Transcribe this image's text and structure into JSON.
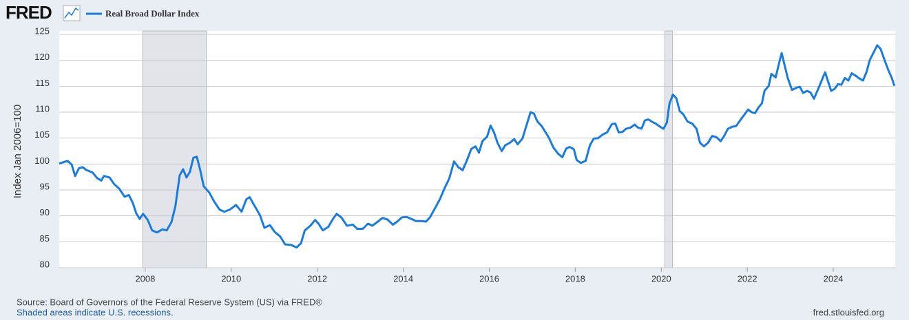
{
  "header": {
    "logo": "FRED"
  },
  "chart_data": {
    "type": "line",
    "y_label": "Index Jan 2006=100",
    "xlim": [
      2006,
      2025.44
    ],
    "xticks": [
      2008,
      2010,
      2012,
      2014,
      2016,
      2018,
      2020,
      2022,
      2024
    ],
    "ylim": [
      80,
      125
    ],
    "yticks": [
      80,
      85,
      90,
      95,
      100,
      105,
      110,
      115,
      120,
      125
    ],
    "grid": true,
    "recessions": [
      [
        2007.94,
        2009.42
      ],
      [
        2020.08,
        2020.26
      ]
    ],
    "recession_color": "#e1e5ea",
    "x": [
      2006.0,
      2006.19,
      2006.29,
      2006.37,
      2006.46,
      2006.54,
      2006.64,
      2006.77,
      2006.88,
      2006.98,
      2007.04,
      2007.17,
      2007.28,
      2007.39,
      2007.52,
      2007.62,
      2007.71,
      2007.79,
      2007.87,
      2007.95,
      2008.06,
      2008.16,
      2008.27,
      2008.4,
      2008.5,
      2008.61,
      2008.7,
      2008.8,
      2008.88,
      2008.96,
      2009.04,
      2009.12,
      2009.2,
      2009.28,
      2009.36,
      2009.49,
      2009.6,
      2009.73,
      2009.84,
      2009.97,
      2010.11,
      2010.24,
      2010.35,
      2010.43,
      2010.53,
      2010.67,
      2010.77,
      2010.9,
      2011.01,
      2011.14,
      2011.25,
      2011.39,
      2011.52,
      2011.62,
      2011.71,
      2011.84,
      2011.95,
      2012.03,
      2012.13,
      2012.26,
      2012.35,
      2012.45,
      2012.56,
      2012.69,
      2012.83,
      2012.93,
      2013.06,
      2013.18,
      2013.28,
      2013.41,
      2013.52,
      2013.63,
      2013.76,
      2013.86,
      2013.97,
      2014.08,
      2014.19,
      2014.3,
      2014.43,
      2014.53,
      2014.62,
      2014.72,
      2014.85,
      2014.96,
      2015.07,
      2015.18,
      2015.28,
      2015.38,
      2015.49,
      2015.58,
      2015.68,
      2015.76,
      2015.84,
      2015.95,
      2016.03,
      2016.11,
      2016.19,
      2016.29,
      2016.37,
      2016.48,
      2016.58,
      2016.66,
      2016.77,
      2016.86,
      2016.96,
      2017.04,
      2017.12,
      2017.22,
      2017.31,
      2017.39,
      2017.49,
      2017.6,
      2017.7,
      2017.79,
      2017.87,
      2017.97,
      2018.03,
      2018.13,
      2018.24,
      2018.34,
      2018.43,
      2018.53,
      2018.64,
      2018.74,
      2018.85,
      2018.93,
      2019.01,
      2019.1,
      2019.18,
      2019.28,
      2019.38,
      2019.46,
      2019.54,
      2019.62,
      2019.7,
      2019.79,
      2019.87,
      2019.95,
      2020.05,
      2020.13,
      2020.19,
      2020.27,
      2020.35,
      2020.43,
      2020.51,
      2020.61,
      2020.72,
      2020.82,
      2020.9,
      2020.99,
      2021.09,
      2021.18,
      2021.28,
      2021.38,
      2021.46,
      2021.55,
      2021.65,
      2021.74,
      2021.84,
      2021.94,
      2022.02,
      2022.1,
      2022.18,
      2022.26,
      2022.34,
      2022.4,
      2022.5,
      2022.56,
      2022.66,
      2022.74,
      2022.8,
      2022.86,
      2022.94,
      2023.04,
      2023.14,
      2023.22,
      2023.3,
      2023.39,
      2023.47,
      2023.55,
      2023.65,
      2023.73,
      2023.81,
      2023.87,
      2023.95,
      2024.03,
      2024.11,
      2024.19,
      2024.27,
      2024.35,
      2024.43,
      2024.51,
      2024.59,
      2024.69,
      2024.77,
      2024.85,
      2024.93,
      2025.02,
      2025.1,
      2025.18,
      2025.28,
      2025.36,
      2025.42
    ],
    "series": [
      {
        "name": "Real Broad Dollar Index",
        "color": "#1a7bdc",
        "values": [
          100.1,
          100.6,
          99.9,
          97.7,
          99.2,
          99.4,
          98.8,
          98.4,
          97.3,
          96.8,
          97.7,
          97.4,
          96.1,
          95.3,
          93.7,
          94.0,
          92.5,
          90.5,
          89.4,
          90.4,
          89.2,
          87.2,
          86.8,
          87.4,
          87.2,
          88.8,
          91.8,
          97.8,
          99.0,
          97.4,
          98.5,
          101.2,
          101.4,
          98.8,
          95.7,
          94.5,
          92.8,
          91.2,
          90.8,
          91.2,
          92.1,
          90.8,
          93.2,
          93.6,
          92.1,
          90.1,
          87.7,
          88.2,
          86.9,
          86.0,
          84.5,
          84.4,
          83.9,
          84.7,
          87.2,
          88.1,
          89.2,
          88.5,
          87.2,
          87.9,
          89.2,
          90.4,
          89.7,
          88.1,
          88.3,
          87.5,
          87.5,
          88.5,
          88.1,
          88.9,
          89.6,
          89.3,
          88.3,
          88.9,
          89.7,
          89.8,
          89.4,
          89.0,
          89.0,
          88.9,
          89.7,
          91.2,
          93.2,
          95.3,
          97.2,
          100.5,
          99.4,
          98.8,
          100.9,
          102.9,
          103.4,
          102.2,
          104.4,
          105.3,
          107.4,
          106.1,
          104.1,
          102.5,
          103.6,
          104.1,
          104.8,
          103.8,
          104.9,
          107.3,
          110.0,
          109.7,
          108.2,
          107.3,
          106.1,
          105.0,
          103.2,
          102.0,
          101.3,
          103.0,
          103.3,
          102.8,
          100.8,
          100.2,
          100.6,
          103.6,
          104.9,
          105.0,
          105.7,
          106.1,
          107.7,
          107.8,
          106.1,
          106.2,
          106.8,
          107.0,
          107.6,
          107.0,
          106.8,
          108.4,
          108.6,
          108.1,
          107.8,
          107.3,
          106.8,
          108.0,
          111.6,
          113.4,
          112.7,
          110.2,
          109.6,
          108.2,
          107.8,
          106.8,
          104.1,
          103.4,
          104.1,
          105.4,
          105.2,
          104.4,
          105.4,
          106.8,
          107.2,
          107.3,
          108.5,
          109.6,
          110.5,
          110.0,
          109.8,
          110.9,
          111.7,
          114.1,
          115.1,
          117.4,
          116.7,
          119.5,
          121.4,
          119.3,
          116.6,
          114.3,
          114.7,
          114.9,
          113.7,
          114.1,
          113.8,
          112.6,
          114.5,
          116.1,
          117.7,
          116.1,
          114.1,
          114.5,
          115.4,
          115.3,
          116.6,
          116.1,
          117.5,
          117.1,
          116.6,
          116.1,
          117.7,
          120.1,
          121.4,
          122.9,
          122.2,
          120.3,
          118.1,
          116.6,
          115.1
        ]
      }
    ]
  },
  "footer": {
    "source": "Source: Board of Governors of the Federal Reserve System (US) via FRED®",
    "note": "Shaded areas indicate U.S. recessions.",
    "url": "fred.stlouisfed.org"
  }
}
